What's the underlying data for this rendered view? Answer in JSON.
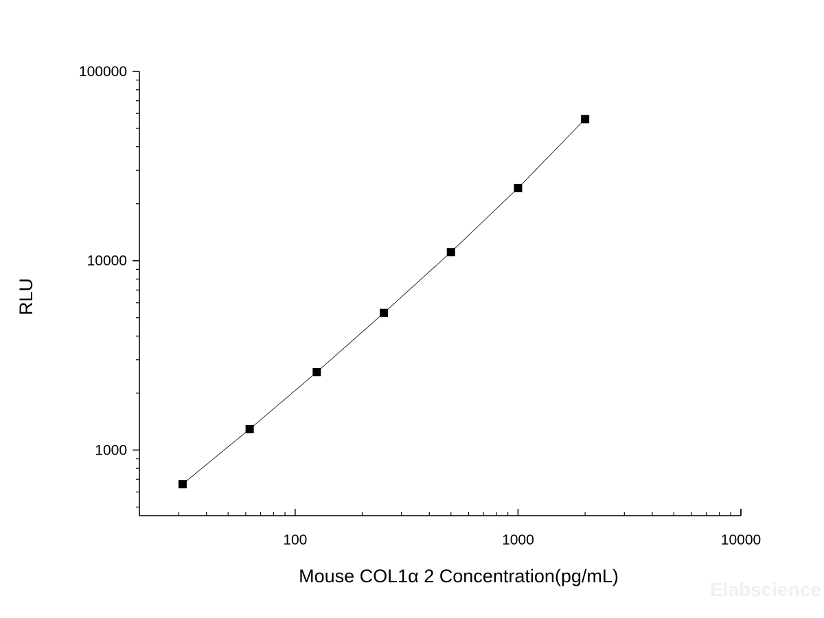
{
  "chart_data": {
    "type": "scatter",
    "title": "",
    "xlabel": "Mouse COL1α 2 Concentration(pg/mL)",
    "ylabel": "RLU",
    "x_scale": "log",
    "y_scale": "log",
    "xlim": [
      20,
      10000
    ],
    "ylim": [
      450,
      100000
    ],
    "x_ticks": [
      100,
      1000,
      10000
    ],
    "x_tick_labels": [
      "100",
      "1000",
      "10000"
    ],
    "y_ticks": [
      1000,
      10000,
      100000
    ],
    "y_tick_labels": [
      "1000",
      "10000",
      "100000"
    ],
    "grid": false,
    "legend": "none",
    "marker": "square",
    "connected": true,
    "series": [
      {
        "x": [
          31.25,
          62.5,
          125,
          250,
          500,
          1000,
          2000
        ],
        "y": [
          660,
          1290,
          2580,
          5300,
          11100,
          24200,
          56000
        ],
        "color": "#000000"
      }
    ]
  },
  "watermark": "Elabscience"
}
